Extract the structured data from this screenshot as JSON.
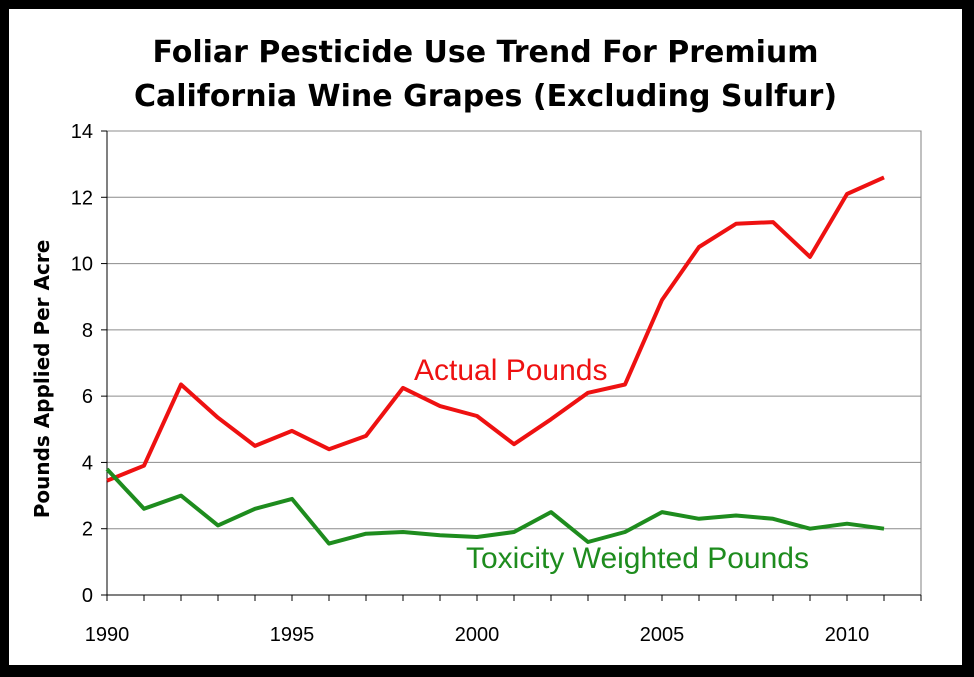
{
  "chart_data": {
    "type": "line",
    "title_line1": "Foliar Pesticide Use Trend For Premium",
    "title_line2": "California Wine Grapes (Excluding Sulfur)",
    "ylabel": "Pounds Applied Per Acre",
    "xlabel": "",
    "xlim": [
      1990,
      2012
    ],
    "ylim": [
      0,
      14
    ],
    "x_ticks": [
      1990,
      1995,
      2000,
      2005,
      2010
    ],
    "y_ticks": [
      0,
      2,
      4,
      6,
      8,
      10,
      12,
      14
    ],
    "grid": "horizontal",
    "legend": "inline labels",
    "x": [
      1990,
      1991,
      1992,
      1993,
      1994,
      1995,
      1996,
      1997,
      1998,
      1999,
      2000,
      2001,
      2002,
      2003,
      2004,
      2005,
      2006,
      2007,
      2008,
      2009,
      2010,
      2011
    ],
    "series": [
      {
        "name": "Actual Pounds",
        "color": "#ee1111",
        "values": [
          3.45,
          3.9,
          6.35,
          5.35,
          4.5,
          4.95,
          4.4,
          4.8,
          6.25,
          5.7,
          5.4,
          4.55,
          5.3,
          6.1,
          6.35,
          8.9,
          10.5,
          11.2,
          11.25,
          10.2,
          12.1,
          12.6
        ]
      },
      {
        "name": "Toxicity Weighted Pounds",
        "color": "#1e8c1e",
        "values": [
          3.8,
          2.6,
          3.0,
          2.1,
          2.6,
          2.9,
          1.55,
          1.85,
          1.9,
          1.8,
          1.75,
          1.9,
          2.5,
          1.6,
          1.9,
          2.5,
          2.3,
          2.4,
          2.3,
          2.0,
          2.15,
          2.0
        ]
      }
    ]
  }
}
